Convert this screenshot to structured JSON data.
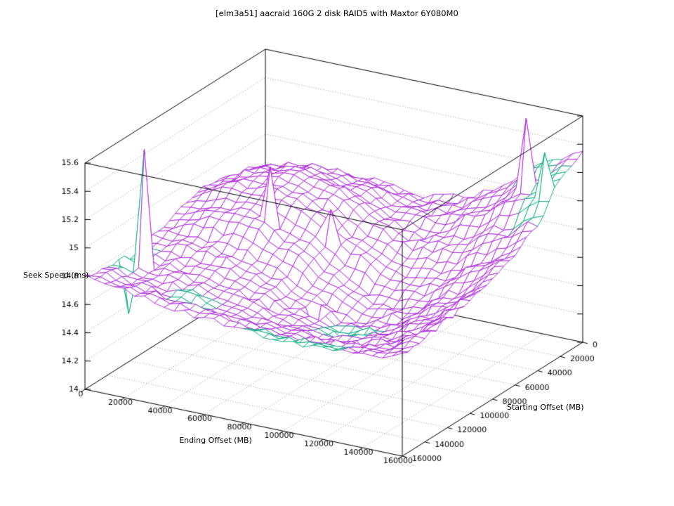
{
  "title": "[elm3a51] aacraid 160G 2 disk RAID5 with Maxtor 6Y080M0",
  "chart_data": {
    "type": "surface3d-wireframe",
    "title": "[elm3a51] aacraid 160G 2 disk RAID5 with Maxtor 6Y080M0",
    "xlabel": "Ending Offset (MB)",
    "ylabel": "Starting Offset (MB)",
    "zlabel": "Seek Speed (ms)",
    "x_range": [
      0,
      160000
    ],
    "y_range": [
      0,
      160000
    ],
    "z_range": [
      14,
      15.6
    ],
    "grid": true,
    "x_tick_labels": [
      "0",
      "20000",
      "40000",
      "60000",
      "80000",
      "100000",
      "120000",
      "140000",
      "160000"
    ],
    "y_tick_labels": [
      "0",
      "20000",
      "40000",
      "60000",
      "80000",
      "100000",
      "120000",
      "140000",
      "160000"
    ],
    "z_tick_labels": [
      "14",
      "14.2",
      "14.4",
      "14.6",
      "14.8",
      "15",
      "15.2",
      "15.4",
      "15.6"
    ],
    "surface": {
      "x_values": [
        0,
        20000,
        40000,
        60000,
        80000,
        100000,
        120000,
        140000,
        160000
      ],
      "y_values": [
        0,
        20000,
        40000,
        60000,
        80000,
        100000,
        120000,
        140000,
        160000
      ],
      "z_matrix": [
        [
          14.72,
          14.78,
          14.84,
          14.83,
          14.8,
          14.85,
          14.98,
          15.22,
          15.35
        ],
        [
          14.84,
          14.94,
          14.98,
          14.91,
          14.82,
          14.81,
          14.92,
          15.08,
          15.26
        ],
        [
          14.9,
          15.02,
          15.06,
          14.98,
          14.81,
          14.73,
          14.77,
          14.9,
          15.04
        ],
        [
          14.89,
          15.01,
          15.02,
          14.93,
          14.74,
          14.61,
          14.62,
          14.76,
          14.92
        ],
        [
          14.84,
          14.91,
          14.91,
          14.8,
          14.62,
          14.5,
          14.52,
          14.66,
          14.84
        ],
        [
          14.78,
          14.79,
          14.77,
          14.67,
          14.54,
          14.45,
          14.5,
          14.62,
          14.8
        ],
        [
          14.74,
          14.73,
          14.7,
          14.63,
          14.54,
          14.48,
          14.52,
          14.6,
          14.76
        ],
        [
          14.78,
          14.71,
          14.69,
          14.64,
          14.59,
          14.56,
          14.57,
          14.62,
          14.74
        ],
        [
          14.8,
          14.76,
          14.7,
          14.68,
          14.66,
          14.64,
          14.64,
          14.66,
          14.71
        ]
      ]
    },
    "spikes": [
      {
        "x": 10000,
        "y": 125000,
        "z": 15.55
      },
      {
        "x": 5000,
        "y": 130000,
        "z": 14.4
      },
      {
        "x": 45000,
        "y": 75000,
        "z": 15.28
      },
      {
        "x": 70000,
        "y": 65000,
        "z": 15.0
      },
      {
        "x": 140000,
        "y": 15000,
        "z": 15.6
      },
      {
        "x": 155000,
        "y": 25000,
        "z": 15.45
      },
      {
        "x": 85000,
        "y": 105000,
        "z": 14.35
      },
      {
        "x": 105000,
        "y": 115000,
        "z": 14.42
      },
      {
        "x": 125000,
        "y": 130000,
        "z": 14.48
      }
    ],
    "underside_green_regions": [
      [
        0,
        12000,
        112000,
        140000
      ],
      [
        145000,
        160000,
        12000,
        42000
      ],
      [
        128000,
        148000,
        0,
        12000
      ],
      [
        95000,
        118000,
        103000,
        126000
      ],
      [
        82000,
        128000,
        152000,
        160000
      ],
      [
        35000,
        55000,
        135000,
        152000
      ]
    ]
  },
  "style": {
    "background": "#ffffff",
    "surface_color": "#aa22dd",
    "underside_color": "#00a878",
    "grid_color": "#999999",
    "axis_color": "#000000",
    "text_color": "#000000",
    "mesh_upsample": 4,
    "mesh_jitter": 0.022
  }
}
